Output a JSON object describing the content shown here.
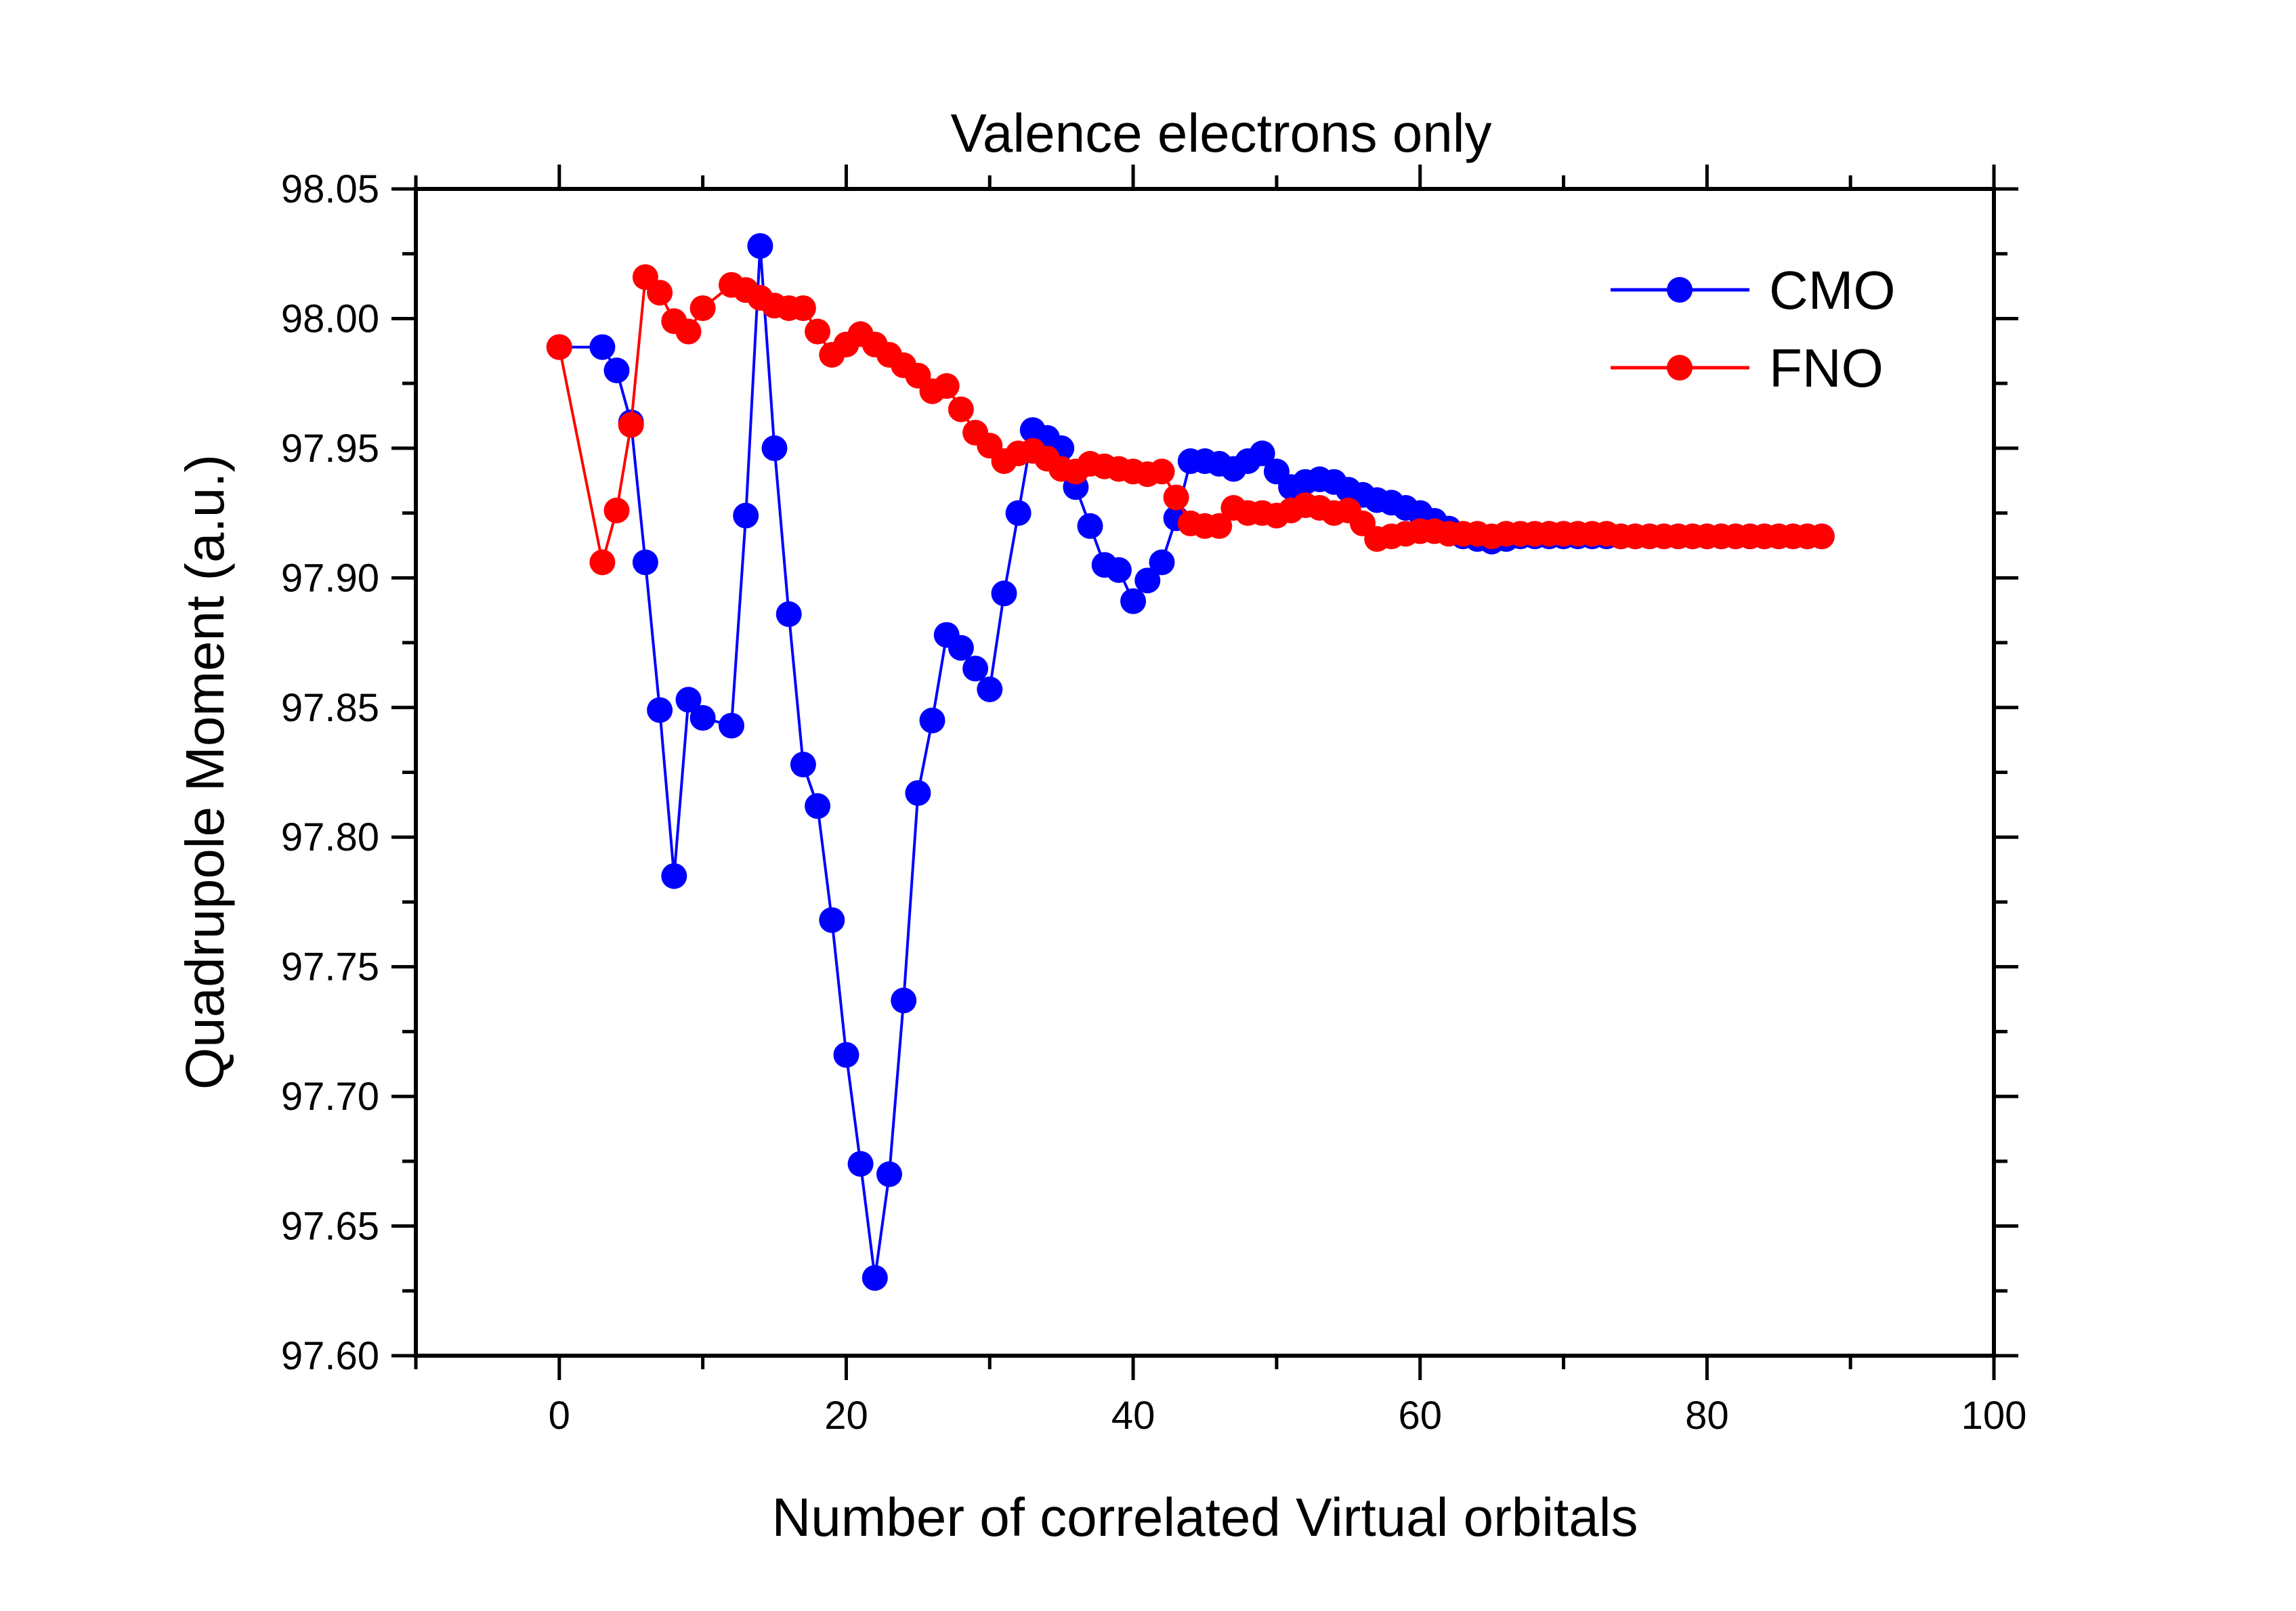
{
  "chart_data": {
    "type": "line",
    "title": "Valence electrons only",
    "xlabel": "Number of correlated Virtual orbitals",
    "ylabel": "Quadrupole Moment (a.u.)",
    "xlim": [
      -10,
      100
    ],
    "ylim": [
      97.6,
      98.05
    ],
    "xticks": [
      0,
      20,
      40,
      60,
      80,
      100
    ],
    "xtick_labels": [
      "0",
      "20",
      "40",
      "60",
      "80",
      "100"
    ],
    "yticks": [
      97.6,
      97.65,
      97.7,
      97.75,
      97.8,
      97.85,
      97.9,
      97.95,
      98.0,
      98.05
    ],
    "ytick_labels": [
      "97.60",
      "97.65",
      "97.70",
      "97.75",
      "97.80",
      "97.85",
      "97.90",
      "97.95",
      "98.00",
      "98.05"
    ],
    "legend_position": "top-right",
    "series": [
      {
        "name": "CMO",
        "color": "#0000ff",
        "x": [
          0,
          3,
          4,
          5,
          6,
          7,
          8,
          9,
          10,
          12,
          13,
          14,
          15,
          16,
          17,
          18,
          19,
          20,
          21,
          22,
          23,
          24,
          25,
          26,
          27,
          28,
          29,
          30,
          31,
          32,
          33,
          34,
          35,
          36,
          37,
          38,
          39,
          40,
          41,
          42,
          43,
          44,
          45,
          46,
          47,
          48,
          49,
          50,
          51,
          52,
          53,
          54,
          55,
          56,
          57,
          58,
          59,
          60,
          61,
          62,
          63,
          64,
          65,
          66,
          67,
          68,
          69,
          70,
          71,
          72,
          73,
          74,
          75,
          76,
          77,
          78,
          79,
          80,
          81,
          82,
          83,
          84,
          85,
          86,
          87,
          88
        ],
        "y": [
          97.989,
          97.989,
          97.98,
          97.96,
          97.906,
          97.849,
          97.785,
          97.853,
          97.846,
          97.843,
          97.924,
          98.028,
          97.95,
          97.886,
          97.828,
          97.812,
          97.768,
          97.716,
          97.674,
          97.63,
          97.67,
          97.737,
          97.817,
          97.845,
          97.878,
          97.873,
          97.865,
          97.857,
          97.894,
          97.925,
          97.957,
          97.954,
          97.95,
          97.935,
          97.92,
          97.905,
          97.903,
          97.891,
          97.899,
          97.906,
          97.923,
          97.945,
          97.945,
          97.944,
          97.942,
          97.945,
          97.948,
          97.941,
          97.935,
          97.937,
          97.938,
          97.937,
          97.934,
          97.932,
          97.93,
          97.929,
          97.927,
          97.925,
          97.922,
          97.919,
          97.916,
          97.915,
          97.914,
          97.915,
          97.916,
          97.916,
          97.916,
          97.916,
          97.916,
          97.916,
          97.916,
          97.916,
          97.916,
          97.916,
          97.916,
          97.916,
          97.916,
          97.916,
          97.916,
          97.916,
          97.916,
          97.916,
          97.916,
          97.916,
          97.916,
          97.916
        ]
      },
      {
        "name": "FNO",
        "color": "#ff0000",
        "x": [
          0,
          3,
          4,
          5,
          6,
          7,
          8,
          9,
          10,
          12,
          13,
          14,
          15,
          16,
          17,
          18,
          19,
          20,
          21,
          22,
          23,
          24,
          25,
          26,
          27,
          28,
          29,
          30,
          31,
          32,
          33,
          34,
          35,
          36,
          37,
          38,
          39,
          40,
          41,
          42,
          43,
          44,
          45,
          46,
          47,
          48,
          49,
          50,
          51,
          52,
          53,
          54,
          55,
          56,
          57,
          58,
          59,
          60,
          61,
          62,
          63,
          64,
          65,
          66,
          67,
          68,
          69,
          70,
          71,
          72,
          73,
          74,
          75,
          76,
          77,
          78,
          79,
          80,
          81,
          82,
          83,
          84,
          85,
          86,
          87,
          88
        ],
        "y": [
          97.989,
          97.906,
          97.926,
          97.959,
          98.016,
          98.01,
          97.999,
          97.995,
          98.004,
          98.013,
          98.011,
          98.008,
          98.005,
          98.004,
          98.004,
          97.995,
          97.986,
          97.99,
          97.994,
          97.99,
          97.986,
          97.982,
          97.978,
          97.972,
          97.974,
          97.965,
          97.956,
          97.951,
          97.945,
          97.948,
          97.949,
          97.946,
          97.942,
          97.941,
          97.944,
          97.943,
          97.942,
          97.941,
          97.94,
          97.941,
          97.931,
          97.921,
          97.92,
          97.92,
          97.927,
          97.925,
          97.925,
          97.924,
          97.926,
          97.928,
          97.927,
          97.925,
          97.926,
          97.921,
          97.915,
          97.916,
          97.917,
          97.918,
          97.918,
          97.917,
          97.917,
          97.917,
          97.916,
          97.917,
          97.917,
          97.917,
          97.917,
          97.917,
          97.917,
          97.917,
          97.917,
          97.916,
          97.916,
          97.916,
          97.916,
          97.916,
          97.916,
          97.916,
          97.916,
          97.916,
          97.916,
          97.916,
          97.916,
          97.916,
          97.916,
          97.916
        ]
      }
    ]
  }
}
